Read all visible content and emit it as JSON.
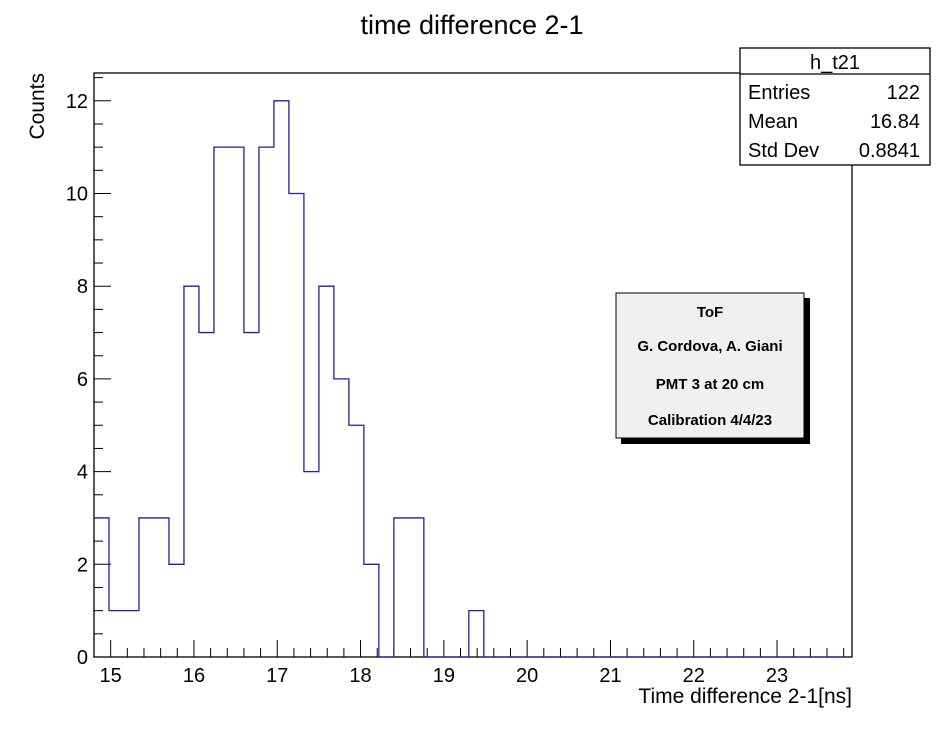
{
  "chart_data": {
    "type": "histogram",
    "title": "time difference 2-1",
    "xlabel": "Time difference 2-1[ns]",
    "ylabel": "Counts",
    "xlim": [
      14.8,
      23.9
    ],
    "ylim": [
      0,
      12.6
    ],
    "xticks": [
      15,
      16,
      17,
      18,
      19,
      20,
      21,
      22,
      23
    ],
    "yticks": [
      0,
      2,
      4,
      6,
      8,
      10,
      12
    ],
    "bin_width": 0.18,
    "bin_edges_start": 14.8,
    "counts": [
      3,
      1,
      1,
      3,
      3,
      2,
      8,
      7,
      11,
      11,
      7,
      11,
      12,
      10,
      4,
      8,
      6,
      5,
      2,
      0,
      3,
      3,
      0,
      0,
      0,
      1,
      0,
      0,
      0,
      0,
      0,
      0,
      0,
      0,
      0,
      0,
      0,
      0,
      0,
      0,
      0,
      0,
      0,
      0,
      0,
      0,
      0,
      0,
      0,
      0
    ],
    "line_color": "#1f1fa0",
    "legend_position": "top-right",
    "grid": false
  },
  "stats_box": {
    "name": "h_t21",
    "rows": [
      {
        "label": "Entries",
        "value": "122"
      },
      {
        "label": "Mean",
        "value": "16.84"
      },
      {
        "label": "Std Dev",
        "value": "0.8841"
      }
    ]
  },
  "info_box": {
    "lines": [
      "ToF",
      "G. Cordova, A. Giani",
      "PMT 3 at 20 cm",
      "Calibration 4/4/23"
    ]
  }
}
